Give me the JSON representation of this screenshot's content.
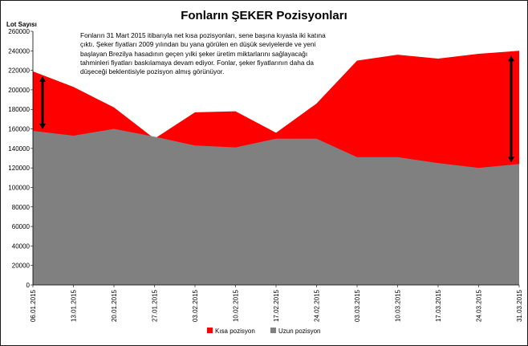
{
  "colors": {
    "short": "#ff0000",
    "long": "#808080",
    "arrow": "#000000"
  },
  "chart_data": {
    "type": "area",
    "title": "Fonların ŞEKER Pozisyonları",
    "ylabel": "Lot Sayısı",
    "xlabel": "",
    "ylim": [
      0,
      260000
    ],
    "yticks": [
      "0",
      "20000",
      "40000",
      "60000",
      "80000",
      "100000",
      "120000",
      "140000",
      "160000",
      "180000",
      "200000",
      "220000",
      "240000",
      "260000"
    ],
    "categories": [
      "06.01.2015",
      "13.01.2015",
      "20.01.2015",
      "27.01.2015",
      "03.02.2015",
      "10.02.2015",
      "17.02.2015",
      "24.02.2015",
      "03.03.2015",
      "10.03.2015",
      "17.03.2015",
      "24.03.2015",
      "31.03.2015"
    ],
    "series": [
      {
        "name": "Kısa pozisyon",
        "values": [
          219000,
          203000,
          182000,
          150000,
          177000,
          178000,
          156000,
          186000,
          230000,
          236000,
          232000,
          237000,
          240000
        ]
      },
      {
        "name": "Uzun pozisyon",
        "values": [
          158000,
          153000,
          160000,
          152000,
          143000,
          141000,
          150000,
          150000,
          131000,
          131000,
          125000,
          120000,
          124000
        ]
      }
    ],
    "legend": "bottom",
    "grid": false,
    "annotation": "Fonların 31 Mart 2015 itibarıyla net kısa pozisyonları, sene başına kıyasla iki katına çıktı. Şeker fiyatları 2009 yılından bu yana görülen en düşük seviyelerde ve yeni başlayan Brezilya hasadının geçen yılki şeker üretim miktarlarını sağlayacağı tahminleri fiyatları baskılamaya devam ediyor. Fonlar, şeker fiyatlarının daha da düşeceği beklentisiyle pozisyon almış görünüyor."
  }
}
